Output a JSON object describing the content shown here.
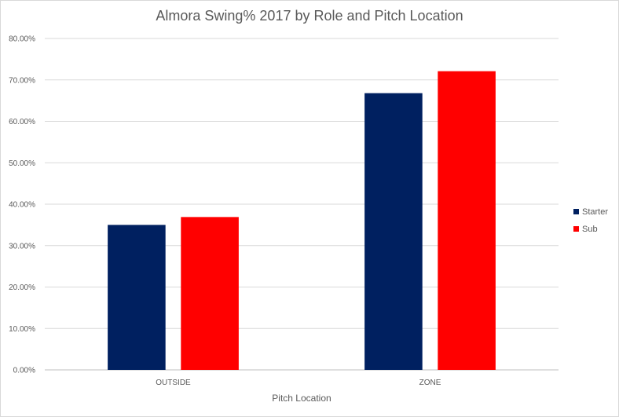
{
  "chart_data": {
    "type": "bar",
    "title": "Almora Swing% 2017 by Role and Pitch Location",
    "xlabel": "Pitch Location",
    "ylabel": "",
    "categories": [
      "OUTSIDE",
      "ZONE"
    ],
    "series": [
      {
        "name": "Starter",
        "color": "#002060",
        "values": [
          0.35,
          0.668
        ]
      },
      {
        "name": "Sub",
        "color": "#ff0000",
        "values": [
          0.369,
          0.721
        ]
      }
    ],
    "ylim": [
      0,
      0.8
    ],
    "yticks": [
      "0.00%",
      "10.00%",
      "20.00%",
      "30.00%",
      "40.00%",
      "50.00%",
      "60.00%",
      "70.00%",
      "80.00%"
    ],
    "grid": true,
    "legend_position": "right"
  }
}
